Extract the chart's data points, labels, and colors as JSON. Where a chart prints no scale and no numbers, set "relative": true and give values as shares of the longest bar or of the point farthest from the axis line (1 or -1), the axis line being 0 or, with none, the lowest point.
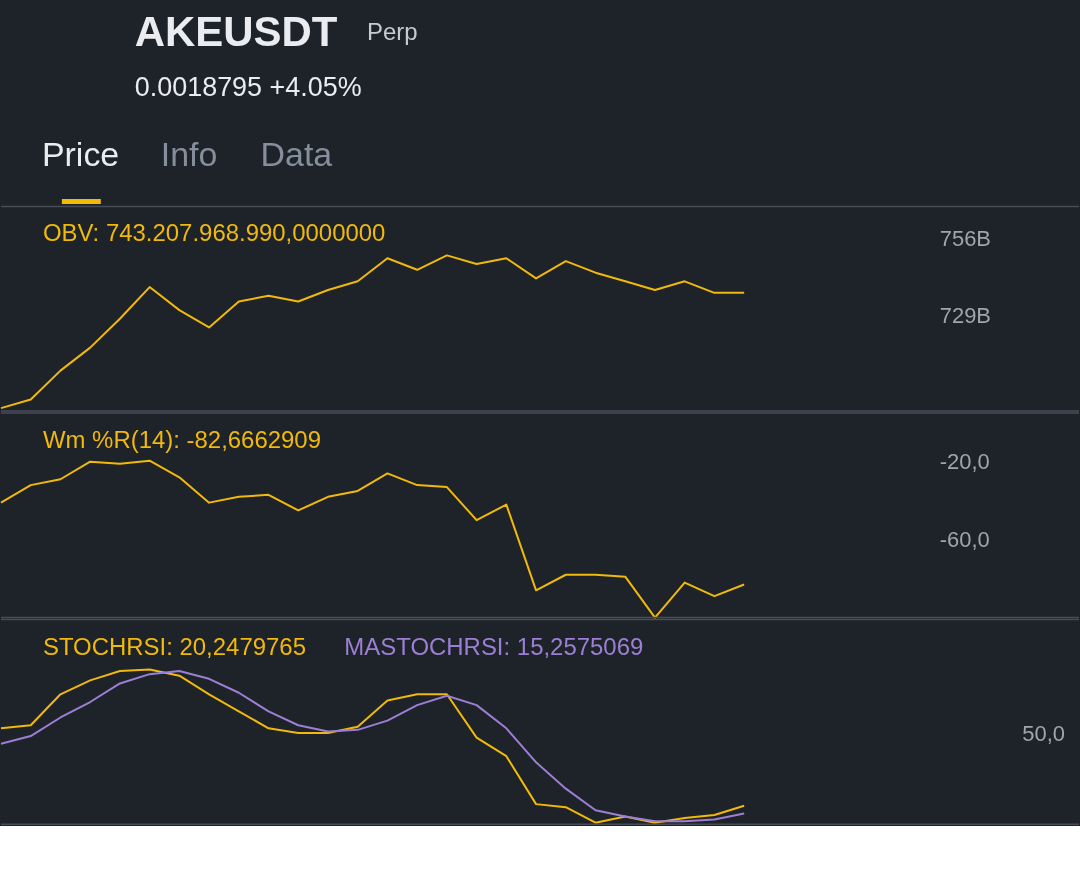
{
  "chart_data": [
    {
      "type": "line",
      "title": "AKEUSDT",
      "subtitle": "0.0018795 +4.05%",
      "annotations": [
        "Perp",
        "Price",
        "Info",
        "Data"
      ],
      "categories": [
        null,
        null,
        null,
        null,
        null,
        null,
        null,
        null,
        null,
        null,
        null,
        null,
        null,
        null,
        null,
        null,
        null,
        null,
        null,
        null,
        null,
        null,
        null,
        null,
        null,
        null
      ],
      "series": [
        {
          "name": "OBV: 743.207.968.990,0000000",
          "color": "#f0b90b",
          "values": [
            697,
            700,
            710,
            718,
            728,
            739,
            731,
            725,
            734,
            736,
            734,
            738,
            741,
            749,
            745,
            750,
            747,
            749,
            742,
            748,
            744,
            741,
            738,
            741,
            737,
            737
          ]
        }
      ],
      "ylim": [
        696,
        767
      ],
      "yticks": [
        {
          "value": 729,
          "label": "729B"
        },
        {
          "value": 756,
          "label": "756B"
        }
      ],
      "legend": "top left"
    },
    {
      "type": "line",
      "categories": [
        null,
        null,
        null,
        null,
        null,
        null,
        null,
        null,
        null,
        null,
        null,
        null,
        null,
        null,
        null,
        null,
        null,
        null,
        null,
        null,
        null,
        null,
        null,
        null,
        null,
        null
      ],
      "series": [
        {
          "name": "Wm %R(14): -82,6662909",
          "color": "#f0b90b",
          "values": [
            -41,
            -32,
            -29,
            -20,
            -21,
            -19.5,
            -28,
            -41,
            -38,
            -37,
            -45,
            -38,
            -35,
            -26,
            -32,
            -33,
            -50,
            -42,
            -86,
            -78,
            -78,
            -79,
            -100,
            -82,
            -89,
            -83
          ]
        }
      ],
      "ylim": [
        -100,
        5
      ],
      "yticks": [
        {
          "value": -60,
          "label": "-60,0"
        },
        {
          "value": -20,
          "label": "-20,0"
        }
      ],
      "legend": "top left"
    },
    {
      "type": "line",
      "relative": true,
      "annotations": [
        "50,0"
      ],
      "categories": [
        null,
        null,
        null,
        null,
        null,
        null,
        null,
        null,
        null,
        null,
        null,
        null,
        null,
        null,
        null,
        null,
        null,
        null,
        null,
        null,
        null,
        null,
        null,
        null,
        null,
        null
      ],
      "series": [
        {
          "name": "STOCHRSI: 20,2479765",
          "color": "#f0b90b",
          "values": [
            0.62,
            0.64,
            0.84,
            0.93,
            0.99,
            1.0,
            0.96,
            0.84,
            0.73,
            0.62,
            0.59,
            0.59,
            0.63,
            0.8,
            0.84,
            0.84,
            0.56,
            0.44,
            0.13,
            0.11,
            0.01,
            0.05,
            0.01,
            0.04,
            0.06,
            0.12
          ]
        },
        {
          "name": "MASTOCHRSI: 15,2575069",
          "color": "#9c7fd4",
          "values": [
            0.52,
            0.57,
            0.69,
            0.79,
            0.91,
            0.97,
            0.99,
            0.94,
            0.85,
            0.73,
            0.64,
            0.6,
            0.61,
            0.67,
            0.77,
            0.83,
            0.77,
            0.62,
            0.4,
            0.23,
            0.09,
            0.05,
            0.02,
            0.02,
            0.03,
            0.07
          ]
        }
      ],
      "legend": "top left"
    }
  ]
}
